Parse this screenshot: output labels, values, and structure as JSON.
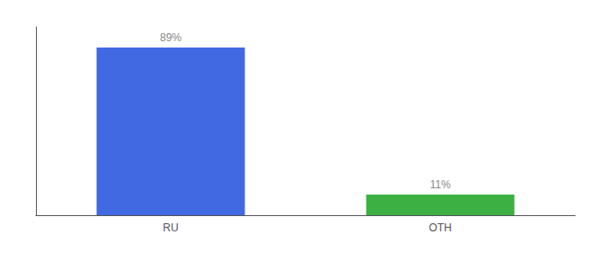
{
  "chart_data": {
    "type": "bar",
    "categories": [
      "RU",
      "OTH"
    ],
    "values": [
      89,
      11
    ],
    "colors": [
      "#4169e1",
      "#3cb043"
    ],
    "value_labels": [
      "89%",
      "11%"
    ],
    "data_labels": true,
    "ylim": [
      0,
      100
    ],
    "yticks": [],
    "tick_labels": "x",
    "grid": false
  }
}
